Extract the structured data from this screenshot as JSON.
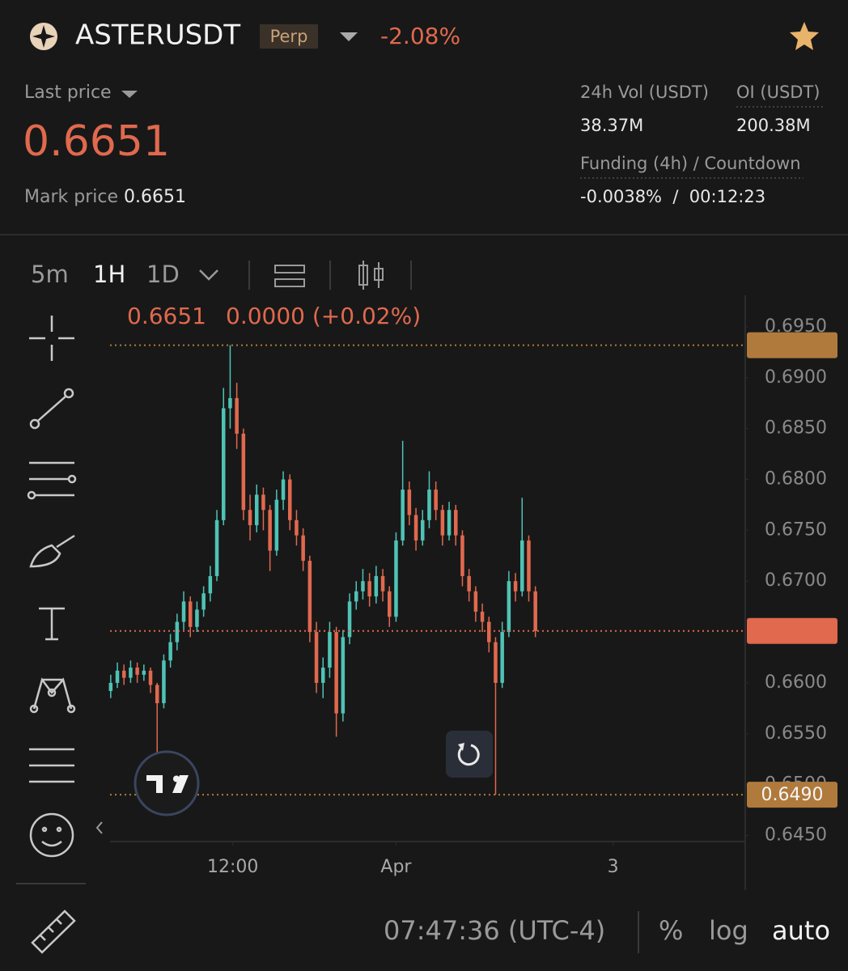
{
  "header": {
    "symbol": "ASTERUSDT",
    "badge": "Perp",
    "change": "-2.08%"
  },
  "stats": {
    "last_price_label": "Last price",
    "last_price": "0.6651",
    "mark_price_label": "Mark price",
    "mark_price": "0.6651",
    "vol_label": "24h Vol (USDT)",
    "vol": "38.37M",
    "oi_label": "OI (USDT)",
    "oi": "200.38M",
    "funding_label": "Funding (4h) / Countdown",
    "funding": "-0.0038%  /  00:12:23"
  },
  "toolbar": {
    "intervals": [
      "5m",
      "1H",
      "1D"
    ]
  },
  "chart_data": {
    "type": "candlestick",
    "legend_text": [
      "0.6651",
      "0.0000 (+0.02%)"
    ],
    "x": [
      0,
      1,
      2,
      3,
      4,
      5,
      6,
      7,
      8,
      9,
      10,
      11,
      12,
      13,
      14,
      15,
      16,
      17,
      18,
      19,
      20,
      21,
      22,
      23,
      24,
      25,
      26,
      27,
      28,
      29,
      30,
      31,
      32,
      33,
      34,
      35,
      36,
      37,
      38,
      39,
      40,
      41,
      42,
      43,
      44,
      45,
      46,
      47,
      48,
      49,
      50,
      51,
      52,
      53,
      54,
      55,
      56,
      57,
      58,
      59,
      60,
      61,
      62,
      63,
      64
    ],
    "open": [
      0.6592,
      0.66,
      0.6612,
      0.6605,
      0.6615,
      0.6608,
      0.6612,
      0.6598,
      0.658,
      0.6622,
      0.664,
      0.666,
      0.668,
      0.6655,
      0.6672,
      0.6688,
      0.6705,
      0.676,
      0.687,
      0.688,
      0.6845,
      0.677,
      0.6755,
      0.6785,
      0.677,
      0.673,
      0.678,
      0.68,
      0.676,
      0.6745,
      0.672,
      0.665,
      0.66,
      0.6615,
      0.665,
      0.657,
      0.6645,
      0.668,
      0.669,
      0.67,
      0.6685,
      0.6705,
      0.669,
      0.6665,
      0.674,
      0.679,
      0.6765,
      0.674,
      0.676,
      0.679,
      0.677,
      0.6745,
      0.677,
      0.6745,
      0.6705,
      0.669,
      0.667,
      0.666,
      0.664,
      0.66,
      0.665,
      0.67,
      0.669,
      0.674,
      0.669
    ],
    "high": [
      0.6608,
      0.662,
      0.6618,
      0.6622,
      0.662,
      0.6618,
      0.6615,
      0.66,
      0.6628,
      0.6648,
      0.6668,
      0.669,
      0.6685,
      0.668,
      0.6695,
      0.6715,
      0.677,
      0.689,
      0.6932,
      0.6895,
      0.685,
      0.6785,
      0.6795,
      0.6792,
      0.6775,
      0.679,
      0.6808,
      0.6805,
      0.677,
      0.6752,
      0.6725,
      0.666,
      0.6625,
      0.666,
      0.6655,
      0.6652,
      0.6688,
      0.67,
      0.6712,
      0.6708,
      0.6715,
      0.6712,
      0.6695,
      0.6748,
      0.6838,
      0.6798,
      0.6772,
      0.677,
      0.6808,
      0.6798,
      0.6775,
      0.6778,
      0.6775,
      0.675,
      0.6712,
      0.6695,
      0.6678,
      0.6665,
      0.6645,
      0.666,
      0.671,
      0.6708,
      0.6782,
      0.6745,
      0.6695
    ],
    "low": [
      0.6585,
      0.6595,
      0.6598,
      0.66,
      0.66,
      0.6602,
      0.659,
      0.6531,
      0.6575,
      0.6615,
      0.6632,
      0.6652,
      0.6645,
      0.665,
      0.6665,
      0.668,
      0.67,
      0.6755,
      0.685,
      0.683,
      0.676,
      0.674,
      0.6748,
      0.675,
      0.671,
      0.6725,
      0.677,
      0.675,
      0.6735,
      0.671,
      0.664,
      0.659,
      0.6585,
      0.6605,
      0.6547,
      0.6562,
      0.6638,
      0.6672,
      0.6682,
      0.6675,
      0.6678,
      0.668,
      0.6655,
      0.666,
      0.6735,
      0.6755,
      0.673,
      0.6735,
      0.6752,
      0.676,
      0.6735,
      0.674,
      0.6735,
      0.6695,
      0.668,
      0.666,
      0.665,
      0.663,
      0.649,
      0.6595,
      0.6645,
      0.668,
      0.6685,
      0.668,
      0.6645
    ],
    "close": [
      0.66,
      0.6612,
      0.6605,
      0.6615,
      0.6608,
      0.6612,
      0.6598,
      0.658,
      0.6622,
      0.664,
      0.666,
      0.668,
      0.6655,
      0.6672,
      0.6688,
      0.6705,
      0.676,
      0.687,
      0.688,
      0.6845,
      0.677,
      0.6755,
      0.6785,
      0.677,
      0.673,
      0.678,
      0.68,
      0.676,
      0.6745,
      0.672,
      0.665,
      0.66,
      0.6615,
      0.665,
      0.657,
      0.6645,
      0.668,
      0.669,
      0.67,
      0.6685,
      0.6705,
      0.669,
      0.6665,
      0.674,
      0.679,
      0.6765,
      0.674,
      0.676,
      0.679,
      0.677,
      0.6745,
      0.677,
      0.6745,
      0.6705,
      0.669,
      0.667,
      0.666,
      0.664,
      0.66,
      0.665,
      0.67,
      0.669,
      0.674,
      0.669,
      0.6651
    ],
    "up_color": "#4fc3b5",
    "down_color": "#e0694e",
    "xlim": [
      -0.1,
      95.5
    ],
    "xticks": [
      {
        "value": 18.4,
        "label": "12:00"
      },
      {
        "value": 43,
        "label": "Apr"
      },
      {
        "value": 75.7,
        "label": "3"
      }
    ],
    "ylim": [
      0.6444,
      0.6981
    ],
    "yticks": [
      {
        "value": 0.695,
        "label": "0.6950"
      },
      {
        "value": 0.69,
        "label": "0.6900"
      },
      {
        "value": 0.685,
        "label": "0.6850"
      },
      {
        "value": 0.68,
        "label": "0.6800"
      },
      {
        "value": 0.675,
        "label": "0.6750"
      },
      {
        "value": 0.67,
        "label": "0.6700"
      },
      {
        "value": 0.665,
        "label": "0.6650"
      },
      {
        "value": 0.66,
        "label": "0.6600"
      },
      {
        "value": 0.655,
        "label": "0.6550"
      },
      {
        "value": 0.65,
        "label": "0.6500"
      },
      {
        "value": 0.645,
        "label": "0.6450"
      }
    ],
    "price_lines": [
      {
        "value": 0.6932,
        "color": "#b07a3c"
      },
      {
        "value": 0.6651,
        "color": "#e0694e"
      },
      {
        "value": 0.649,
        "label": "0.6490",
        "color": "#b07a3c"
      }
    ]
  },
  "footer": {
    "time": "07:47:36 (UTC-4)",
    "percent": "%",
    "log": "log",
    "auto": "auto"
  }
}
